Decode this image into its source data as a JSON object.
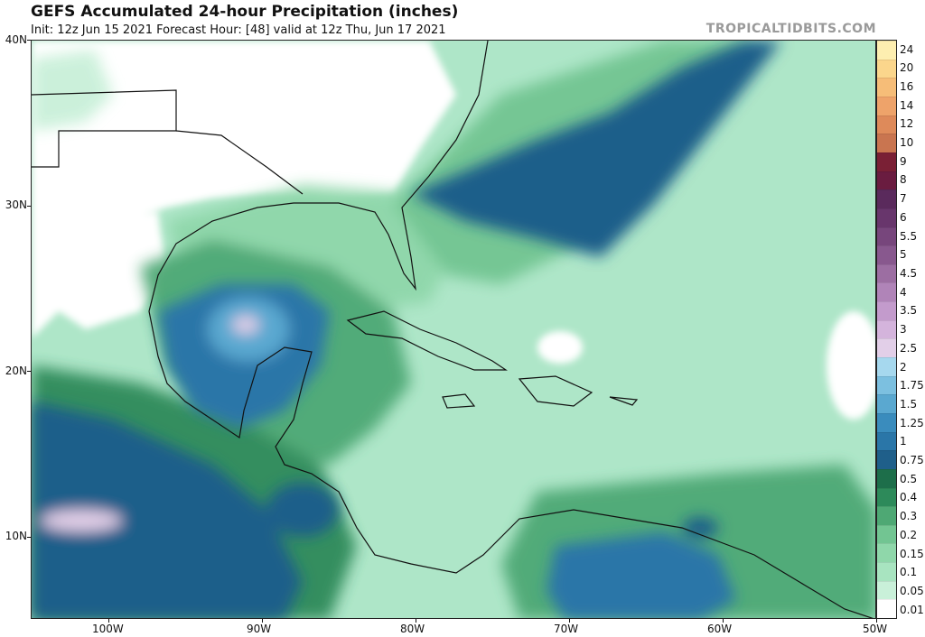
{
  "header": {
    "title": "GEFS Accumulated 24-hour Precipitation (inches)",
    "subtitle": "Init: 12z Jun 15 2021   Forecast Hour: [48]   valid at 12z Thu, Jun 17 2021",
    "credit": "TROPICALTIDBITS.COM"
  },
  "axes": {
    "lat_labels": [
      "40N",
      "30N",
      "20N",
      "10N"
    ],
    "lon_labels": [
      "100W",
      "90W",
      "80W",
      "70W",
      "60W",
      "50W"
    ]
  },
  "colorbar": {
    "labels": [
      "0.01",
      "0.05",
      "0.1",
      "0.15",
      "0.2",
      "0.3",
      "0.4",
      "0.5",
      "0.75",
      "1",
      "1.25",
      "1.5",
      "1.75",
      "2",
      "2.5",
      "3",
      "3.5",
      "4",
      "4.5",
      "5",
      "5.5",
      "6",
      "7",
      "8",
      "9",
      "10",
      "12",
      "14",
      "16",
      "20",
      "24"
    ],
    "colors": [
      "#ffffff",
      "#c9f0d9",
      "#a8e4c0",
      "#8fd7aa",
      "#72c592",
      "#4ea874",
      "#2d8a5a",
      "#1d6e4a",
      "#1f5f8a",
      "#2a76a8",
      "#3a8cbd",
      "#5aa8d0",
      "#7cc0e0",
      "#a6d8ee",
      "#e2cfe8",
      "#d4b4dc",
      "#c39bcc",
      "#b084b8",
      "#9c6ea2",
      "#88588e",
      "#77467c",
      "#68366c",
      "#5a2a5c",
      "#6a1c40",
      "#7a2035",
      "#c97550",
      "#de8a5a",
      "#eea36a",
      "#f6bd78",
      "#fbd68c",
      "#fdeeb0"
    ]
  },
  "map": {
    "base_color": "#aee6c8",
    "land_outline_color": "#111111",
    "region": "Gulf of Mexico, Caribbean, Western Atlantic"
  }
}
